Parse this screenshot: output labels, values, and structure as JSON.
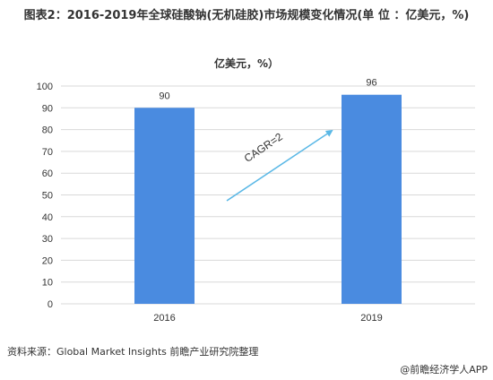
{
  "title": "图表2：2016-2019年全球硅酸钠(无机硅胶)市场规模变化情况(单 位 ：亿美元，%)",
  "subtitle": "亿美元，%）",
  "source": "资料来源：Global Market Insights 前瞻产业研究院整理",
  "app_credit": "@前瞻经济学人APP",
  "colors": {
    "bar": "#4A8BE0",
    "arrow": "#5AB8E6",
    "grid": "#D9D9D9",
    "axis_text": "#333333"
  },
  "chart_data": {
    "type": "bar",
    "categories": [
      "2016",
      "2019"
    ],
    "values": [
      90,
      96
    ],
    "ylim": [
      0,
      100
    ],
    "yticks": [
      0,
      10,
      20,
      30,
      40,
      50,
      60,
      70,
      80,
      90,
      100
    ],
    "annotation": "CAGR=2",
    "grid": true
  }
}
